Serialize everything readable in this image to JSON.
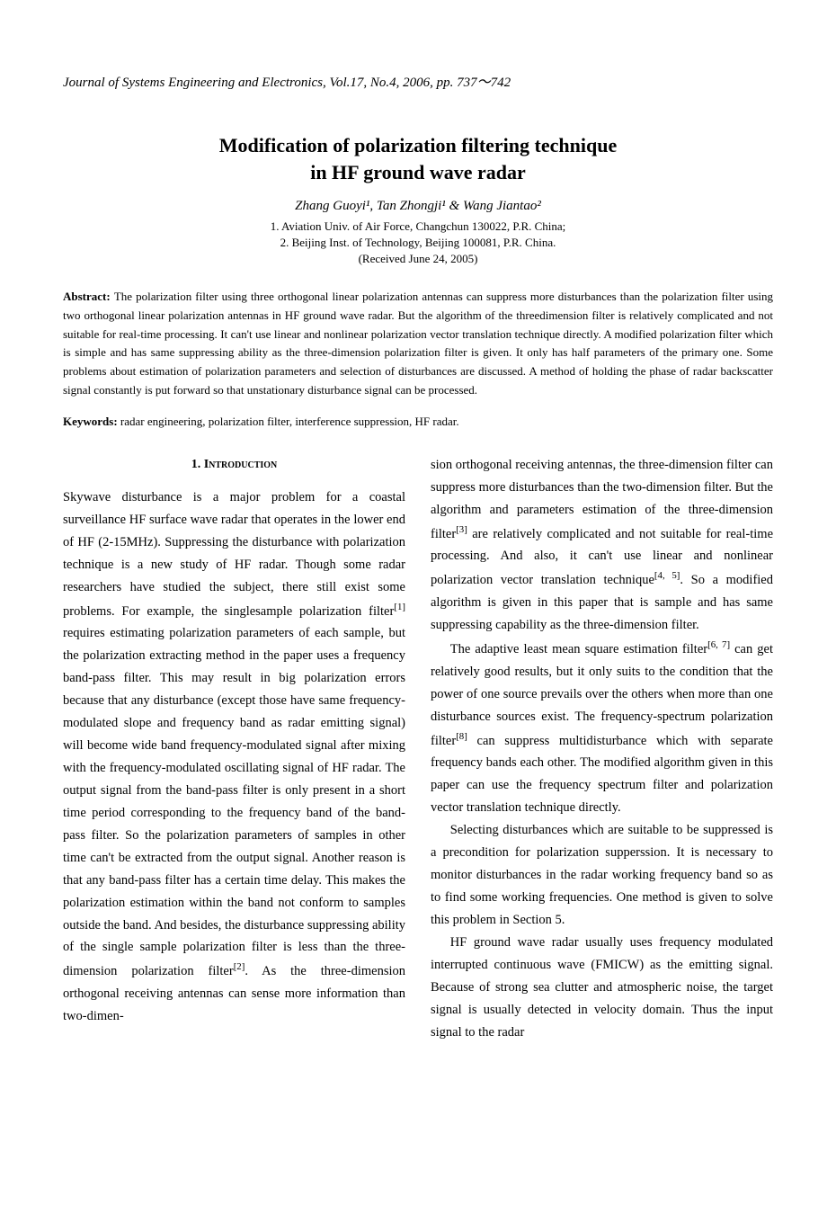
{
  "journal_header": "Journal of Systems Engineering and Electronics, Vol.17, No.4, 2006, pp. 737～742",
  "title_line1": "Modification of polarization filtering technique",
  "title_line2": "in HF ground wave radar",
  "authors": "Zhang Guoyi¹, Tan Zhongji¹ & Wang Jiantao²",
  "affiliation1": "1. Aviation Univ. of Air Force, Changchun 130022, P.R. China;",
  "affiliation2": "2. Beijing Inst. of Technology, Beijing 100081, P.R. China.",
  "received": "(Received June 24, 2005)",
  "abstract_label": "Abstract: ",
  "abstract_text": "The polarization filter using three orthogonal linear polarization antennas can suppress more disturbances than the polarization filter using two orthogonal linear polarization antennas in HF ground wave radar. But the algorithm of the threedimension filter is relatively complicated and not suitable for real-time processing. It can't use linear and nonlinear polarization vector translation technique directly. A modified polarization filter which is simple and has same suppressing ability as the three-dimension polarization filter is given. It only has half parameters of the primary one. Some problems about estimation of polarization parameters and selection of disturbances are discussed. A method of holding the phase of radar backscatter signal constantly is put forward so that unstationary disturbance signal can be processed.",
  "keywords_label": "Keywords: ",
  "keywords_text": "radar engineering, polarization filter, interference suppression, HF radar.",
  "section1_heading": "1.   Introduction",
  "col1_para1": "Skywave disturbance is a major problem for a coastal surveillance HF surface wave radar that operates in the lower end of HF (2-15MHz). Suppressing the disturbance with polarization technique is a new study of HF radar. Though some radar researchers have studied the subject, there still exist some problems. For example, the singlesample polarization filter[1] requires estimating polarization parameters of each sample, but the polarization extracting method in the paper uses a frequency band-pass filter. This may result in big polarization errors because that any disturbance (except those have same frequency-modulated slope and frequency band as radar emitting signal) will become wide band frequency-modulated signal after mixing with the frequency-modulated oscillating signal of HF radar. The output signal from the band-pass filter is only present in a short time period corresponding to the frequency band of the band-pass filter. So the polarization parameters of samples in other time can't be extracted from the output signal. Another reason is that any band-pass filter has a certain time delay. This makes the polarization estimation within the band not conform to samples outside the band. And besides, the disturbance suppressing ability of the single sample polarization filter is less than the three-dimension polarization filter[2]. As the three-dimension orthogonal receiving antennas can sense more information than two-dimen-",
  "col2_para1": "sion orthogonal receiving antennas, the three-dimension filter can suppress more disturbances than the two-dimension filter. But the algorithm and parameters estimation of the three-dimension filter[3] are relatively complicated and not suitable for real-time processing. And also, it can't use linear and nonlinear polarization vector translation technique[4, 5]. So a modified algorithm is given in this paper that is sample and has same suppressing capability as the three-dimension filter.",
  "col2_para2": "The adaptive least mean square estimation filter[6, 7] can get relatively good results, but it only suits to the condition that the power of one source prevails over the others when more than one disturbance sources exist. The frequency-spectrum polarization filter[8] can suppress multidisturbance which with separate frequency bands each other. The modified algorithm given in this paper can use the frequency spectrum filter and polarization vector translation technique directly.",
  "col2_para3": "Selecting disturbances which are suitable to be suppressed is a precondition for polarization supperssion. It is necessary to monitor disturbances in the radar working frequency band so as to find some working frequencies. One method is given to solve this problem in Section 5.",
  "col2_para4": "HF ground wave radar usually uses frequency modulated interrupted continuous wave (FMICW) as the emitting signal. Because of strong sea clutter and atmospheric noise, the target signal is usually detected in velocity domain. Thus the input signal to the radar"
}
